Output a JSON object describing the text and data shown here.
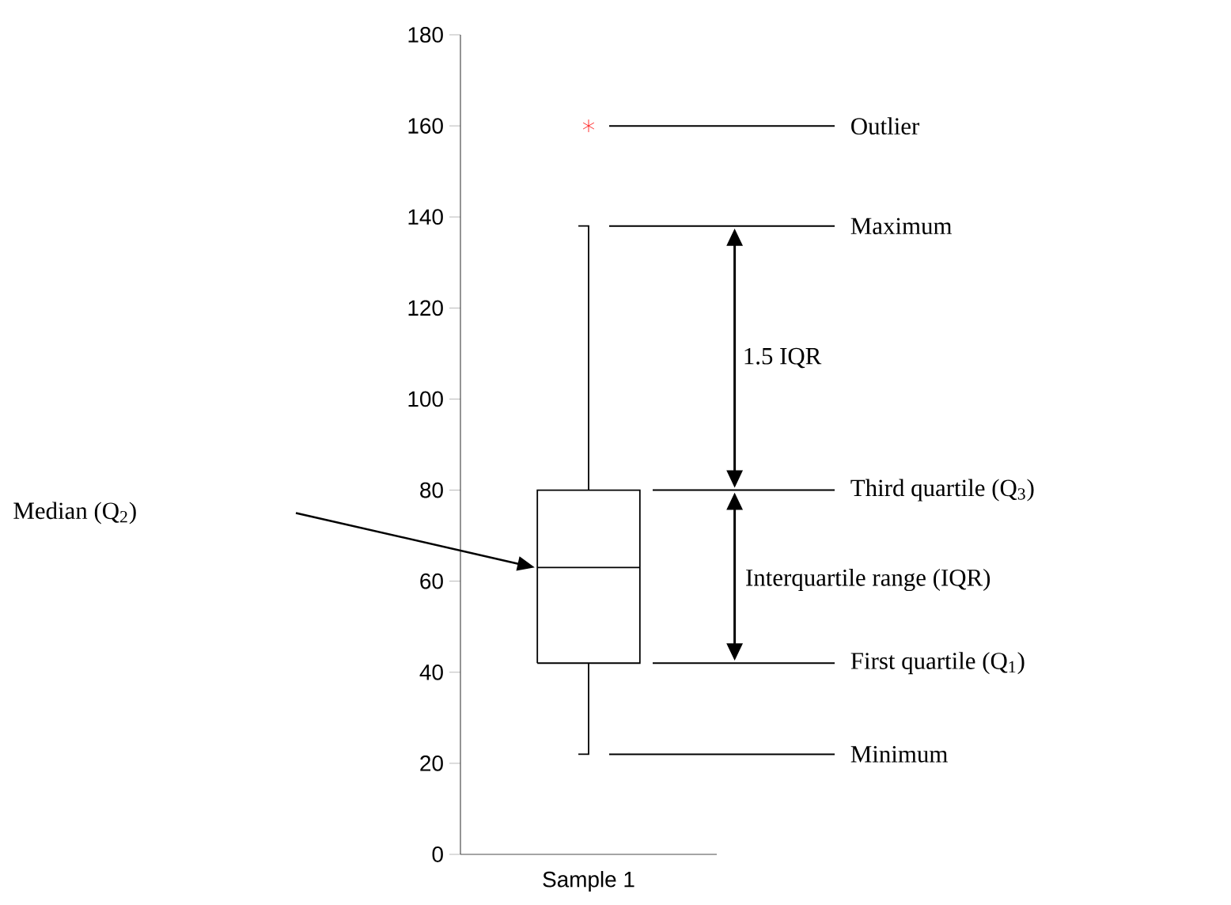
{
  "chart_data": {
    "type": "box",
    "categories": [
      "Sample 1"
    ],
    "ylim": [
      0,
      180
    ],
    "yticks": [
      0,
      20,
      40,
      60,
      80,
      100,
      120,
      140,
      160,
      180
    ],
    "series": [
      {
        "color": "#000000",
        "boxes": [
          {
            "low": 22,
            "q1": 42,
            "median": 63,
            "q3": 80,
            "high": 138
          }
        ]
      },
      {
        "type": "scatter",
        "color": "#ff0000",
        "marker": "cross",
        "x": [
          "Sample 1"
        ],
        "values": [
          160
        ]
      }
    ],
    "annotations": [
      "Outlier",
      "Maximum",
      "Third quartile (Q$_{3}$)",
      "First quartile (Q$_{1}$)",
      "Minimum",
      "Median (Q$_{2}$)",
      "1.5 IQR",
      "Interquartile range (IQR)"
    ]
  }
}
